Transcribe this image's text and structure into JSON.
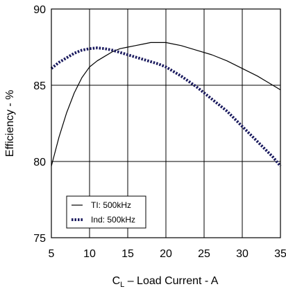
{
  "chart_data": {
    "type": "line",
    "title": "",
    "xlabel_main": "C",
    "xlabel_sub": "L",
    "xlabel_rest": " – Load Current - A",
    "ylabel": "Efficiency - %",
    "xlim": [
      5,
      35
    ],
    "ylim": [
      75,
      90
    ],
    "x_ticks": [
      5,
      10,
      15,
      20,
      25,
      30,
      35
    ],
    "y_ticks": [
      75,
      80,
      85,
      90
    ],
    "grid": true,
    "legend_position": "bottom-left",
    "series": [
      {
        "name": "TI: 500kHz",
        "style": "solid",
        "color": "#000000",
        "points": [
          [
            5,
            79.7
          ],
          [
            6,
            81.6
          ],
          [
            7,
            83.2
          ],
          [
            8,
            84.5
          ],
          [
            9,
            85.5
          ],
          [
            10,
            86.2
          ],
          [
            11,
            86.6
          ],
          [
            12,
            86.9
          ],
          [
            13,
            87.2
          ],
          [
            14,
            87.4
          ],
          [
            15,
            87.5
          ],
          [
            16,
            87.6
          ],
          [
            17,
            87.7
          ],
          [
            18,
            87.8
          ],
          [
            19,
            87.8
          ],
          [
            20,
            87.8
          ],
          [
            22,
            87.6
          ],
          [
            24,
            87.3
          ],
          [
            26,
            87.0
          ],
          [
            28,
            86.6
          ],
          [
            30,
            86.1
          ],
          [
            32,
            85.6
          ],
          [
            34,
            85.0
          ],
          [
            35,
            84.7
          ]
        ]
      },
      {
        "name": "Ind: 500kHz",
        "style": "dotted",
        "color": "#1a1a5e",
        "points": [
          [
            5,
            86.1
          ],
          [
            6,
            86.5
          ],
          [
            7,
            86.8
          ],
          [
            8,
            87.1
          ],
          [
            9,
            87.3
          ],
          [
            10,
            87.4
          ],
          [
            11,
            87.45
          ],
          [
            12,
            87.4
          ],
          [
            13,
            87.3
          ],
          [
            14,
            87.15
          ],
          [
            15,
            87.0
          ],
          [
            16,
            86.85
          ],
          [
            17,
            86.7
          ],
          [
            18,
            86.55
          ],
          [
            19,
            86.4
          ],
          [
            20,
            86.2
          ],
          [
            21,
            85.9
          ],
          [
            22,
            85.6
          ],
          [
            23,
            85.25
          ],
          [
            24,
            84.9
          ],
          [
            25,
            84.5
          ],
          [
            26,
            84.1
          ],
          [
            27,
            83.7
          ],
          [
            28,
            83.3
          ],
          [
            29,
            82.8
          ],
          [
            30,
            82.3
          ],
          [
            31,
            81.8
          ],
          [
            32,
            81.3
          ],
          [
            33,
            80.8
          ],
          [
            34,
            80.3
          ],
          [
            35,
            79.7
          ]
        ]
      }
    ]
  }
}
